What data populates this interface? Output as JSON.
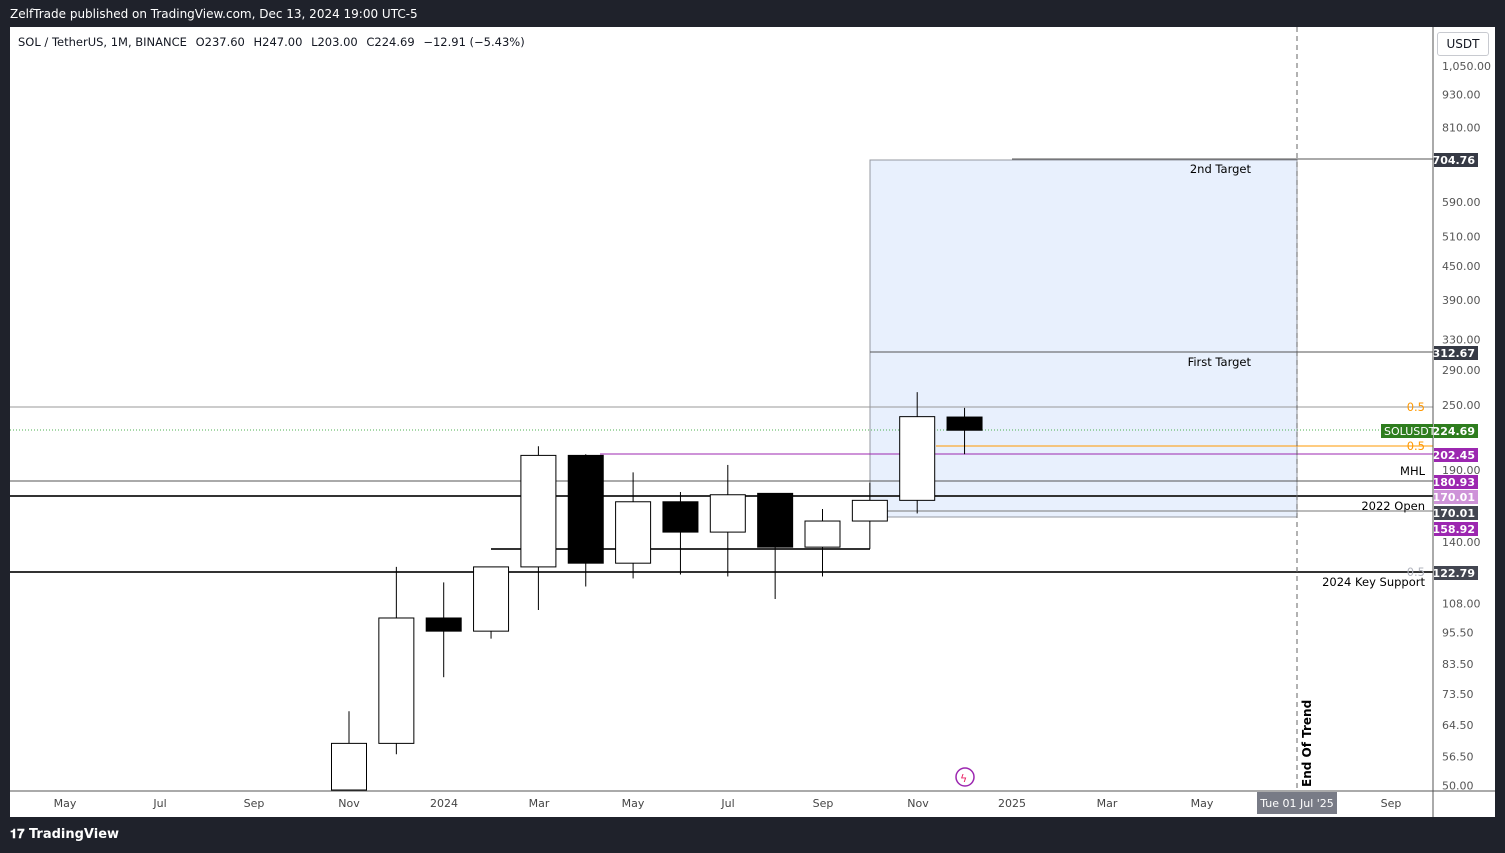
{
  "header": {
    "publisher": "ZelfTrade published on TradingView.com, Dec 13, 2024 19:00 UTC-5"
  },
  "legend": {
    "symbol": "SOL / TetherUS, 1M, BINANCE",
    "open": "O237.60",
    "high": "H247.00",
    "low": "L203.00",
    "close": "C224.69",
    "change": "−12.91 (−5.43%)"
  },
  "currency_button": "USDT",
  "footer": {
    "brand": "TradingView"
  },
  "price_axis": {
    "scale": "log",
    "ticks": [
      "1,050.00",
      "930.00",
      "810.00",
      "590.00",
      "510.00",
      "450.00",
      "390.00",
      "330.00",
      "290.00",
      "250.00",
      "190.00",
      "140.00",
      "108.00",
      "95.50",
      "83.50",
      "73.50",
      "64.50",
      "56.50",
      "50.00"
    ]
  },
  "price_labels": [
    {
      "text": "704.76",
      "color": "#363a45"
    },
    {
      "text": "312.67",
      "color": "#363a45"
    },
    {
      "text": "224.69",
      "color": "#2e7d1e",
      "tag": "SOLUSDT"
    },
    {
      "text": "202.45",
      "color": "#9c27b0"
    },
    {
      "text": "180.93",
      "color": "#9c27b0"
    },
    {
      "text": "170.01",
      "color": "#ce93d8"
    },
    {
      "text": "170.01",
      "color": "#434651"
    },
    {
      "text": "158.92",
      "color": "#9c27b0"
    },
    {
      "text": "122.79",
      "color": "#434651"
    }
  ],
  "time_axis": {
    "labels": [
      "May",
      "Jul",
      "Sep",
      "Nov",
      "2024",
      "Mar",
      "May",
      "Jul",
      "Sep",
      "Nov",
      "2025",
      "Mar",
      "May",
      "Sep"
    ],
    "highlight": "Tue 01 Jul '25"
  },
  "annotations": {
    "second_target": "2nd Target",
    "first_target": "First Target",
    "mhl": "MHL",
    "open_2022": "2022 Open",
    "key_support": "2024 Key Support",
    "end_of_trend": "End Of Trend",
    "fib_a": "0.5",
    "fib_b": "0.5",
    "fib_c": "0.5"
  },
  "chart_data": {
    "type": "candlestick",
    "symbol": "SOLUSDT",
    "interval": "1M",
    "x": [
      "2023-11",
      "2023-12",
      "2024-01",
      "2024-02",
      "2024-03",
      "2024-04",
      "2024-05",
      "2024-06",
      "2024-07",
      "2024-08",
      "2024-09",
      "2024-10",
      "2024-11",
      "2024-12"
    ],
    "open": [
      40.3,
      59.7,
      101.5,
      96,
      126,
      202,
      128,
      166,
      146,
      172,
      137,
      153,
      167,
      237.6
    ],
    "high": [
      68.4,
      126,
      118,
      117,
      210,
      203,
      188,
      173,
      194,
      172,
      161,
      180,
      264,
      247
    ],
    "low": [
      38,
      57,
      79,
      93,
      105,
      116,
      120,
      122,
      121,
      110,
      121,
      136,
      158,
      203
    ],
    "close": [
      59.7,
      101.5,
      96,
      126,
      202,
      128,
      166,
      146,
      171,
      137,
      153,
      167,
      238,
      224.69
    ],
    "ylim": [
      50,
      1050
    ],
    "colors": {
      "up": "#ffffff",
      "down": "#000000",
      "target_box": "#e8f0fd",
      "purple": "#9c27b0",
      "orange": "#ff9800"
    }
  }
}
